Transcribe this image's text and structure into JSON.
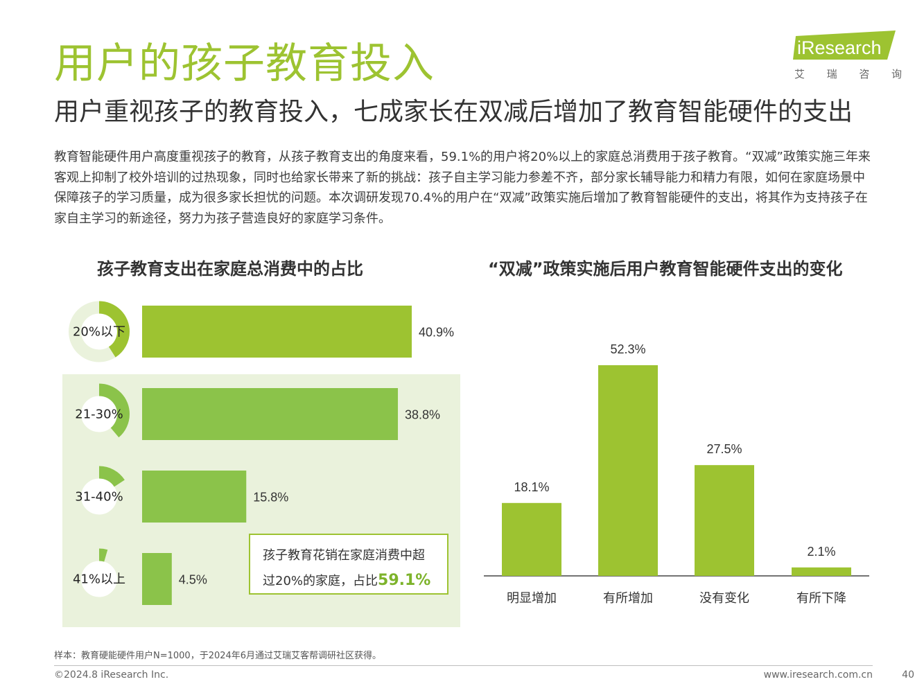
{
  "page": {
    "title": "用户的孩子教育投入",
    "subtitle": "用户重视孩子的教育投入，七成家长在双减后增加了教育智能硬件的支出",
    "body": "教育智能硬件用户高度重视孩子的教育，从孩子教育支出的角度来看，59.1%的用户将20%以上的家庭总消费用于孩子教育。“双减”政策实施三年来客观上抑制了校外培训的过热现象，同时也给家长带来了新的挑战：孩子自主学习能力参差不齐，部分家长辅导能力和精力有限，如何在家庭场景中保障孩子的学习质量，成为很多家长担忧的问题。本次调研发现70.4%的用户在“双减”政策实施后增加了教育智能硬件的支出，将其作为支持孩子在家自主学习的新途径，努力为孩子营造良好的家庭学习条件。"
  },
  "logo": {
    "brand": "iResearch",
    "sub": [
      "艾",
      "瑞",
      "咨",
      "询"
    ],
    "color": "#9dc331"
  },
  "colors": {
    "accent": "#9dc331",
    "bar_light": "#9dc331",
    "bar_dark": "#8bc34a",
    "panel": "#eaf2dc",
    "ring_bg": "#eaf2dc"
  },
  "callout": {
    "line1": "孩子教育花销在家庭消费中超",
    "line2": "过20%的家庭，占比",
    "value": "59.1%"
  },
  "footer": {
    "note": "样本：教育硬能硬件用户N=1000，于2024年6月通过艾瑞艾客帮调研社区获得。",
    "copyright": "©2024.8 iResearch Inc.",
    "website": "www.iresearch.com.cn",
    "page": "40"
  },
  "chart_data": [
    {
      "type": "bar",
      "orientation": "horizontal",
      "title": "孩子教育支出在家庭总消费中的占比",
      "categories": [
        "20%以下",
        "21-30%",
        "31-40%",
        "41%以上"
      ],
      "values": [
        40.9,
        38.8,
        15.8,
        4.5
      ],
      "labels": [
        "40.9%",
        "38.8%",
        "15.8%",
        "4.5%"
      ],
      "unit": "%",
      "xlim": [
        0,
        50
      ],
      "grid": false
    },
    {
      "type": "bar",
      "orientation": "vertical",
      "title": "“双减”政策实施后用户教育智能硬件支出的变化",
      "categories": [
        "明显增加",
        "有所增加",
        "没有变化",
        "有所下降"
      ],
      "values": [
        18.1,
        52.3,
        27.5,
        2.1
      ],
      "labels": [
        "18.1%",
        "52.3%",
        "27.5%",
        "2.1%"
      ],
      "unit": "%",
      "ylim": [
        0,
        60
      ],
      "grid": false
    }
  ]
}
